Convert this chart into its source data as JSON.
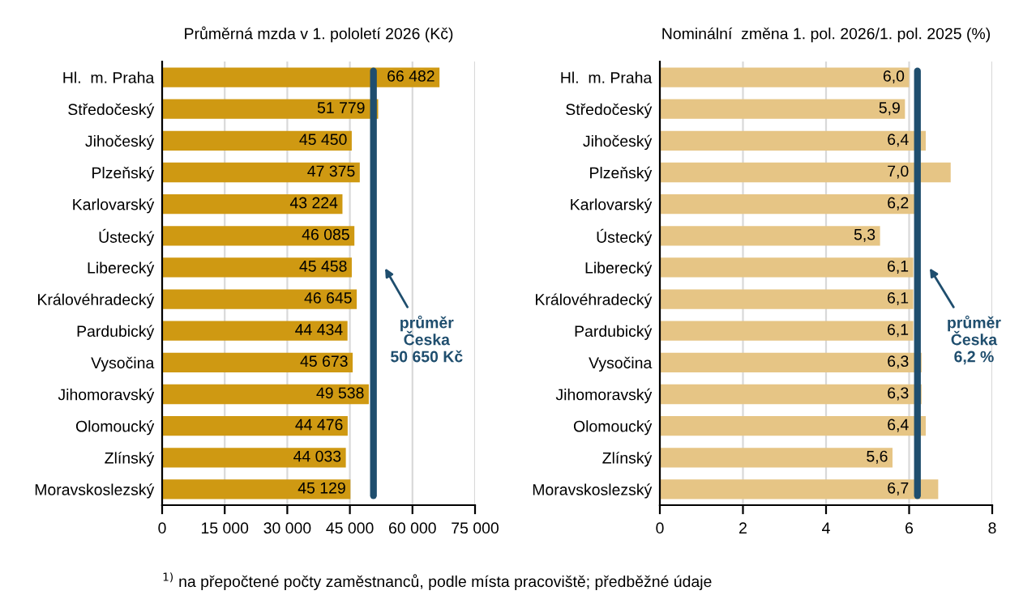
{
  "chart_data": [
    {
      "type": "bar",
      "orientation": "horizontal",
      "title": "Průměrná mzda v 1. pololetí 2026 (Kč)",
      "categories": [
        "Hl.  m. Praha",
        "Středočeský",
        "Jihočeský",
        "Plzeňský",
        "Karlovarský",
        "Ústecký",
        "Liberecký",
        "Královéhradecký",
        "Pardubický",
        "Vysočina",
        "Jihomoravský",
        "Olomoucký",
        "Zlínský",
        "Moravskoslezský"
      ],
      "values": [
        66482,
        51779,
        45450,
        47375,
        43224,
        46085,
        45458,
        46645,
        44434,
        45673,
        49538,
        44476,
        44033,
        45129
      ],
      "value_labels": [
        "66 482",
        "51 779",
        "45 450",
        "47 375",
        "43 224",
        "46 085",
        "45 458",
        "46 645",
        "44 434",
        "45 673",
        "49 538",
        "44 476",
        "44 033",
        "45 129"
      ],
      "color": "#cf9912",
      "xlim": [
        0,
        75000
      ],
      "xticks": [
        0,
        {
          "value": 15000,
          "label": "15 000"
        },
        {
          "value": 30000,
          "label": "30 000"
        },
        {
          "value": 45000,
          "label": "45 000"
        },
        {
          "value": 60000,
          "label": "60 000"
        },
        {
          "value": 75000,
          "label": "75 000"
        }
      ],
      "grid": "x",
      "ref_lines": [
        {
          "axis": "x",
          "value": 50650,
          "label": "průměr\nČeska\n50 650 Kč",
          "color": "#1f4e6e"
        }
      ],
      "annotations": [
        "$^{1)}$ na přepočtené počty zaměstnanců, podle místa pracoviště; předběžné údaje"
      ]
    },
    {
      "type": "bar",
      "orientation": "horizontal",
      "title": "Nominální  změna 1. pol. 2026/1. pol. 2025 (%)",
      "categories": [
        "Hl.  m. Praha",
        "Středočeský",
        "Jihočeský",
        "Plzeňský",
        "Karlovarský",
        "Ústecký",
        "Liberecký",
        "Královéhradecký",
        "Pardubický",
        "Vysočina",
        "Jihomoravský",
        "Olomoucký",
        "Zlínský",
        "Moravskoslezský"
      ],
      "values": [
        6.0,
        5.9,
        6.4,
        7.0,
        6.2,
        5.3,
        6.1,
        6.1,
        6.1,
        6.3,
        6.3,
        6.4,
        5.6,
        6.7
      ],
      "value_labels": [
        "6,0",
        "5,9",
        "6,4",
        "7,0",
        "6,2",
        "5,3",
        "6,1",
        "6,1",
        "6,1",
        "6,3",
        "6,3",
        "6,4",
        "5,6",
        "6,7"
      ],
      "color": "#e6c585",
      "xlim": [
        0,
        8
      ],
      "xticks": [
        0,
        2,
        4,
        6,
        8
      ],
      "grid": "x",
      "ref_lines": [
        {
          "axis": "x",
          "value": 6.2,
          "label": "průměr\nČeska\n6,2 %",
          "color": "#1f4e6e"
        }
      ]
    }
  ]
}
